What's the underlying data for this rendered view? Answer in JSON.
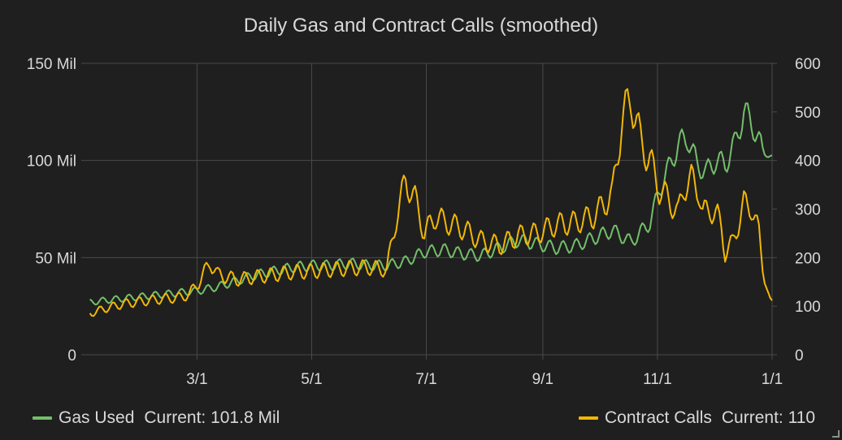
{
  "panel": {
    "title": "Daily Gas and Contract Calls (smoothed)"
  },
  "colors": {
    "background": "#1f1f20",
    "grid": "#4a4a4c",
    "text": "#d8d9da",
    "gas": "#73bf69",
    "calls": "#f2b705"
  },
  "legend": {
    "gas": {
      "name": "Gas Used",
      "current": "Current: 101.8 Mil"
    },
    "calls": {
      "name": "Contract Calls",
      "current": "Current: 110"
    }
  },
  "chart_data": {
    "type": "line",
    "title": "Daily Gas and Contract Calls (smoothed)",
    "x_domain_days": [
      0,
      365
    ],
    "x_ticks": [
      {
        "label": "3/1",
        "day": 59
      },
      {
        "label": "5/1",
        "day": 120
      },
      {
        "label": "7/1",
        "day": 181
      },
      {
        "label": "9/1",
        "day": 243
      },
      {
        "label": "11/1",
        "day": 304
      },
      {
        "label": "1/1",
        "day": 365
      }
    ],
    "y_left": {
      "ylim": [
        0,
        150000000
      ],
      "ticks": [
        "0",
        "50 Mil",
        "100 Mil",
        "150 Mil"
      ],
      "tick_values": [
        0,
        50000000,
        100000000,
        150000000
      ]
    },
    "y_right": {
      "ylim": [
        0,
        600
      ],
      "ticks": [
        "0",
        "100",
        "200",
        "300",
        "400",
        "500",
        "600"
      ],
      "tick_values": [
        0,
        100,
        200,
        300,
        400,
        500,
        600
      ]
    },
    "grid": true,
    "legend_position": "bottom",
    "series": [
      {
        "name": "Gas Used",
        "axis": "left",
        "color": "#73bf69",
        "current": 101800000,
        "points": [
          [
            2,
            27000000
          ],
          [
            10,
            28000000
          ],
          [
            20,
            29000000
          ],
          [
            30,
            30000000
          ],
          [
            40,
            31000000
          ],
          [
            50,
            32000000
          ],
          [
            60,
            33000000
          ],
          [
            70,
            35000000
          ],
          [
            80,
            38000000
          ],
          [
            90,
            41000000
          ],
          [
            100,
            43000000
          ],
          [
            110,
            45000000
          ],
          [
            120,
            46000000
          ],
          [
            130,
            46000000
          ],
          [
            140,
            47000000
          ],
          [
            150,
            46000000
          ],
          [
            160,
            46000000
          ],
          [
            170,
            48000000
          ],
          [
            180,
            53000000
          ],
          [
            190,
            54000000
          ],
          [
            200,
            52000000
          ],
          [
            210,
            51000000
          ],
          [
            220,
            55000000
          ],
          [
            230,
            59000000
          ],
          [
            240,
            57000000
          ],
          [
            250,
            55000000
          ],
          [
            260,
            56000000
          ],
          [
            270,
            60000000
          ],
          [
            280,
            64000000
          ],
          [
            290,
            58000000
          ],
          [
            300,
            68000000
          ],
          [
            305,
            85000000
          ],
          [
            310,
            96000000
          ],
          [
            315,
            108000000
          ],
          [
            320,
            112000000
          ],
          [
            325,
            98000000
          ],
          [
            330,
            94000000
          ],
          [
            335,
            100000000
          ],
          [
            340,
            98000000
          ],
          [
            345,
            108000000
          ],
          [
            350,
            125000000
          ],
          [
            355,
            118000000
          ],
          [
            360,
            104000000
          ],
          [
            365,
            101800000
          ]
        ]
      },
      {
        "name": "Contract Calls",
        "axis": "right",
        "color": "#f2b705",
        "current": 110,
        "points": [
          [
            2,
            85
          ],
          [
            10,
            95
          ],
          [
            20,
            105
          ],
          [
            30,
            110
          ],
          [
            40,
            115
          ],
          [
            50,
            118
          ],
          [
            55,
            125
          ],
          [
            60,
            150
          ],
          [
            66,
            190
          ],
          [
            70,
            165
          ],
          [
            80,
            155
          ],
          [
            90,
            160
          ],
          [
            100,
            165
          ],
          [
            110,
            170
          ],
          [
            120,
            172
          ],
          [
            130,
            175
          ],
          [
            140,
            178
          ],
          [
            150,
            180
          ],
          [
            160,
            175
          ],
          [
            165,
            280
          ],
          [
            170,
            360
          ],
          [
            175,
            320
          ],
          [
            180,
            250
          ],
          [
            186,
            285
          ],
          [
            190,
            275
          ],
          [
            200,
            260
          ],
          [
            210,
            235
          ],
          [
            220,
            225
          ],
          [
            230,
            245
          ],
          [
            240,
            250
          ],
          [
            250,
            268
          ],
          [
            260,
            272
          ],
          [
            270,
            285
          ],
          [
            280,
            330
          ],
          [
            285,
            480
          ],
          [
            290,
            530
          ],
          [
            295,
            440
          ],
          [
            300,
            400
          ],
          [
            305,
            340
          ],
          [
            310,
            320
          ],
          [
            315,
            290
          ],
          [
            318,
            345
          ],
          [
            322,
            360
          ],
          [
            326,
            340
          ],
          [
            328,
            290
          ],
          [
            332,
            300
          ],
          [
            336,
            285
          ],
          [
            338,
            260
          ],
          [
            340,
            210
          ],
          [
            344,
            230
          ],
          [
            350,
            310
          ],
          [
            354,
            305
          ],
          [
            358,
            250
          ],
          [
            361,
            150
          ],
          [
            364,
            115
          ],
          [
            365,
            110
          ]
        ]
      }
    ]
  }
}
